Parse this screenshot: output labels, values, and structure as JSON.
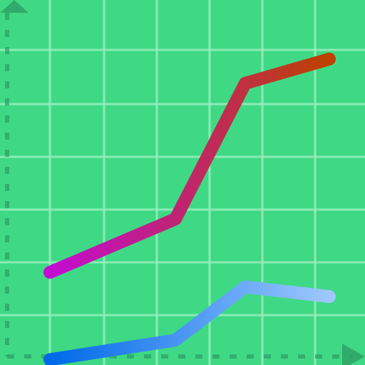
{
  "icon": {
    "name": "line-chart-icon",
    "background_color": "#3fd985",
    "grid_color": "#a6f0c4",
    "axis_color": "#2f9e63",
    "series": [
      {
        "id": "series-1",
        "gradient": [
          "#c20bd3",
          "#bd4100"
        ],
        "values": [
          0.0,
          0.11,
          0.39,
          0.44
        ]
      },
      {
        "id": "series-2",
        "gradient": [
          "#0069e8",
          "#9ec8ff"
        ],
        "values": [
          -0.18,
          -0.14,
          -0.03,
          -0.05
        ]
      }
    ]
  }
}
